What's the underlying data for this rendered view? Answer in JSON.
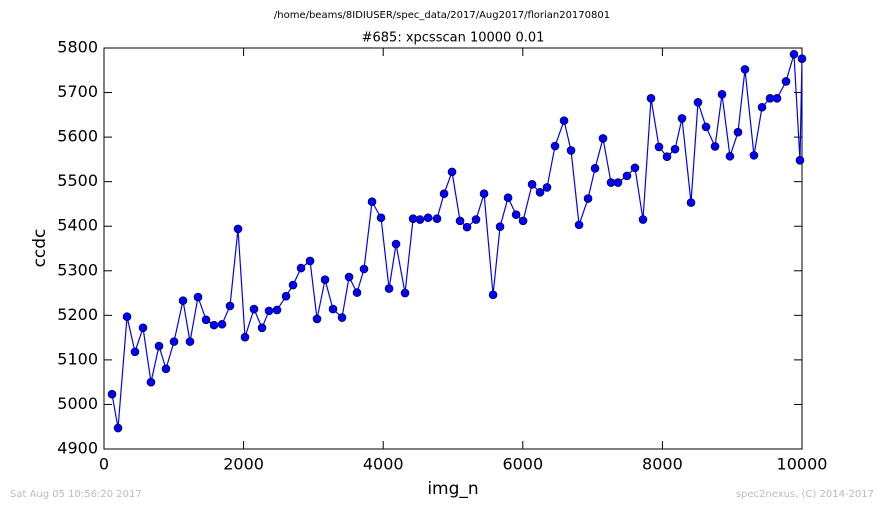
{
  "chart_data": {
    "type": "line",
    "header": "/home/beams/8IDIUSER/spec_data/2017/Aug2017/florian20170801",
    "title": "#685: xpcsscan 10000 0.01",
    "x_label": "img_n",
    "y_label": "ccdc",
    "footer_left": "Sat Aug 05 10:56:20 2017",
    "footer_right": "spec2nexus, (C) 2014-2017",
    "x": [
      115,
      201,
      330,
      444,
      559,
      673,
      788,
      888,
      1003,
      1132,
      1232,
      1347,
      1462,
      1576,
      1691,
      1805,
      1920,
      2020,
      2149,
      2264,
      2364,
      2479,
      2608,
      2708,
      2823,
      2952,
      3052,
      3167,
      3281,
      3410,
      3511,
      3625,
      3725,
      3840,
      3969,
      4084,
      4184,
      4313,
      4428,
      4528,
      4643,
      4771,
      4872,
      4986,
      5101,
      5201,
      5330,
      5445,
      5574,
      5674,
      5789,
      5904,
      6004,
      6133,
      6247,
      6347,
      6462,
      6591,
      6691,
      6806,
      6935,
      7035,
      7149,
      7264,
      7364,
      7493,
      7607,
      7722,
      7837,
      7951,
      8066,
      8181,
      8281,
      8410,
      8510,
      8625,
      8754,
      8854,
      8968,
      9083,
      9183,
      9312,
      9427,
      9542,
      9642,
      9771,
      9885,
      9971,
      10000
    ],
    "series": [
      {
        "name": "ccdc",
        "color": "#0000ff",
        "values": [
          5023,
          4947,
          5197,
          5118,
          5172,
          5050,
          5131,
          5080,
          5141,
          5233,
          5141,
          5241,
          5190,
          5178,
          5180,
          5221,
          5394,
          5151,
          5214,
          5172,
          5210,
          5212,
          5243,
          5268,
          5306,
          5322,
          5192,
          5280,
          5214,
          5195,
          5286,
          5251,
          5304,
          5455,
          5419,
          5260,
          5360,
          5250,
          5417,
          5415,
          5419,
          5417,
          5473,
          5522,
          5412,
          5398,
          5415,
          5473,
          5246,
          5399,
          5464,
          5426,
          5412,
          5494,
          5476,
          5487,
          5580,
          5637,
          5570,
          5403,
          5462,
          5530,
          5597,
          5498,
          5498,
          5513,
          5531,
          5415,
          5687,
          5578,
          5556,
          5573,
          5642,
          5453,
          5678,
          5623,
          5579,
          5696,
          5557,
          5611,
          5752,
          5559,
          5667,
          5687,
          5687,
          5725,
          5786,
          5548,
          5776
        ]
      }
    ],
    "xlim": [
      0,
      10000
    ],
    "ylim": [
      4900,
      5800
    ],
    "xticks": [
      0,
      2000,
      4000,
      6000,
      8000,
      10000
    ],
    "yticks": [
      4900,
      5000,
      5100,
      5200,
      5300,
      5400,
      5500,
      5600,
      5700,
      5800
    ]
  }
}
